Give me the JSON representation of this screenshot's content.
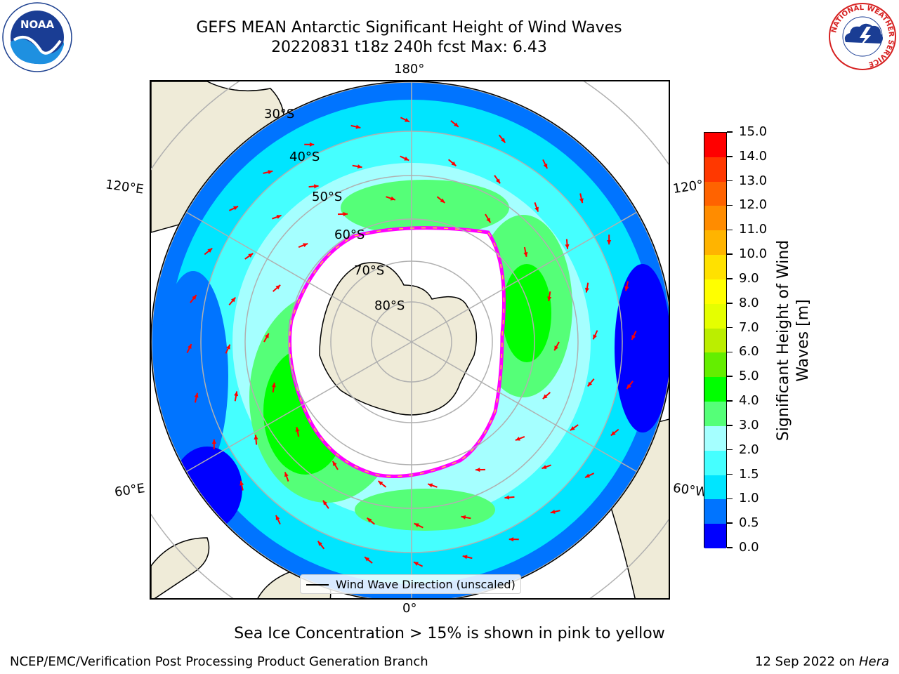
{
  "title": {
    "line1": "GEFS MEAN Antarctic Significant Height of Wind Waves",
    "line2": "20220831 t18z 240h fcst   Max: 6.43"
  },
  "map": {
    "projection": "south-polar-stereographic",
    "lon_labels": {
      "top": "180°",
      "bottom": "0°",
      "upper_left": "120°E",
      "lower_left": "60°E",
      "upper_right": "120°",
      "lower_right": "60°W"
    },
    "lat_labels": [
      "30°S",
      "40°S",
      "50°S",
      "60°S",
      "70°S",
      "80°S"
    ],
    "land_color": "#efebd8",
    "ice_edge_colors": [
      "#ff00ff",
      "#ffcc33"
    ],
    "arrow_color": "#ff0000"
  },
  "colorbar": {
    "title": "Significant Height of Wind Waves [m]",
    "title_line1": "Significant Height of Wind",
    "title_line2": "Waves [m]",
    "ticks": [
      "0.0",
      "0.5",
      "1.0",
      "1.5",
      "2.0",
      "3.0",
      "4.0",
      "5.0",
      "6.0",
      "7.0",
      "8.0",
      "9.0",
      "10.0",
      "11.0",
      "12.0",
      "13.0",
      "14.0",
      "15.0"
    ],
    "colors": [
      "#0000ff",
      "#0074ff",
      "#00e5ff",
      "#45ffff",
      "#a5ffff",
      "#55ff78",
      "#00ff00",
      "#64ee00",
      "#bbee00",
      "#e5ff00",
      "#ffff00",
      "#ffe100",
      "#ffb400",
      "#ff8c00",
      "#ff6300",
      "#ff3800",
      "#ff0000"
    ]
  },
  "legend": {
    "label": "Wind Wave Direction (unscaled)"
  },
  "footnote": "Sea Ice Concentration > 15% is shown in pink to yellow",
  "footer": {
    "left": "NCEP/EMC/Verification Post Processing Product Generation Branch",
    "right_prefix": "12 Sep 2022 on ",
    "right_host": "Hera"
  },
  "logos": {
    "noaa": {
      "text": "NOAA"
    },
    "nws": {
      "ring_text": "NATIONAL WEATHER SERVICE"
    }
  }
}
